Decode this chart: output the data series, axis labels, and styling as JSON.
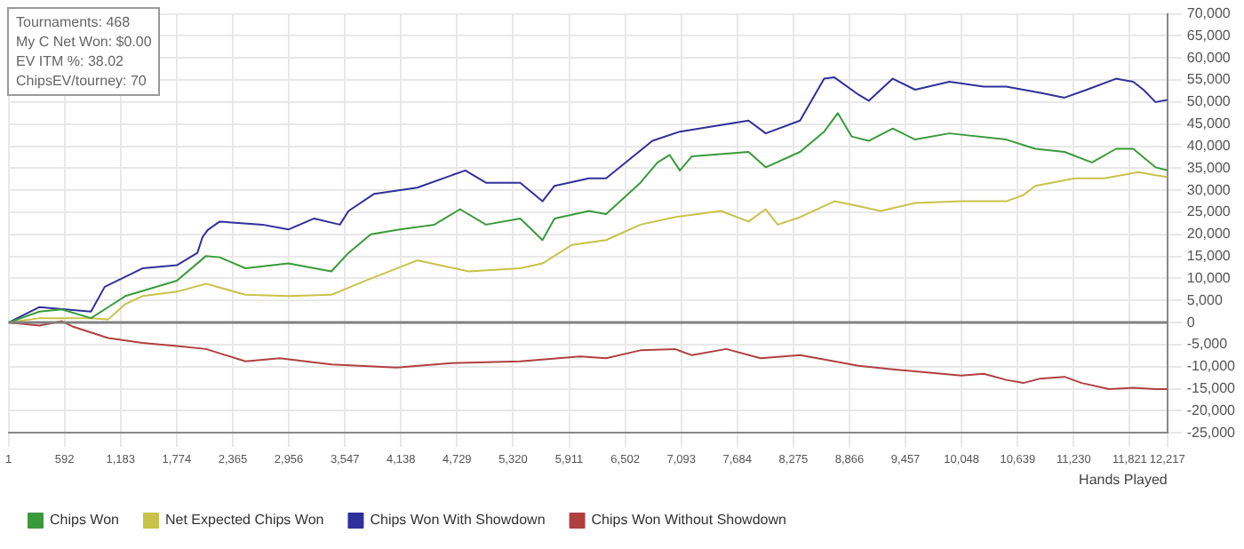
{
  "chart_data": {
    "type": "line",
    "xlabel": "Hands Played",
    "annotations": [
      "Tournaments: 468",
      "My C Net Won: $0.00",
      "EV ITM %: 38.02",
      "ChipsEV/tourney: 70"
    ],
    "xlim": [
      1,
      12217
    ],
    "xticks": [
      1,
      592,
      {
        "value": 1183,
        "label": "1,183"
      },
      {
        "value": 1774,
        "label": "1,774"
      },
      {
        "value": 2365,
        "label": "2,365"
      },
      {
        "value": 2956,
        "label": "2,956"
      },
      {
        "value": 3547,
        "label": "3,547"
      },
      {
        "value": 4138,
        "label": "4,138"
      },
      {
        "value": 4729,
        "label": "4,729"
      },
      {
        "value": 5320,
        "label": "5,320"
      },
      {
        "value": 5911,
        "label": "5,911"
      },
      {
        "value": 6502,
        "label": "6,502"
      },
      {
        "value": 7093,
        "label": "7,093"
      },
      {
        "value": 7684,
        "label": "7,684"
      },
      {
        "value": 8275,
        "label": "8,275"
      },
      {
        "value": 8866,
        "label": "8,866"
      },
      {
        "value": 9457,
        "label": "9,457"
      },
      {
        "value": 10048,
        "label": "10,048"
      },
      {
        "value": 10639,
        "label": "10,639"
      },
      {
        "value": 11230,
        "label": "11,230"
      },
      {
        "value": 11821,
        "label": "11,821"
      },
      {
        "value": 12217,
        "label": "12,217"
      }
    ],
    "ylim": [
      -25000,
      70000
    ],
    "yticks": [
      {
        "value": -25000,
        "label": "-25,000"
      },
      {
        "value": -20000,
        "label": "-20,000"
      },
      {
        "value": -15000,
        "label": "-15,000"
      },
      {
        "value": -10000,
        "label": "-10,000"
      },
      {
        "value": -5000,
        "label": "-5,000"
      },
      0,
      {
        "value": 5000,
        "label": "5,000"
      },
      {
        "value": 10000,
        "label": "10,000"
      },
      {
        "value": 15000,
        "label": "15,000"
      },
      {
        "value": 20000,
        "label": "20,000"
      },
      {
        "value": 25000,
        "label": "25,000"
      },
      {
        "value": 30000,
        "label": "30,000"
      },
      {
        "value": 35000,
        "label": "35,000"
      },
      {
        "value": 40000,
        "label": "40,000"
      },
      {
        "value": 45000,
        "label": "45,000"
      },
      {
        "value": 50000,
        "label": "50,000"
      },
      {
        "value": 55000,
        "label": "55,000"
      },
      {
        "value": 60000,
        "label": "60,000"
      },
      {
        "value": 65000,
        "label": "65,000"
      },
      {
        "value": 70000,
        "label": "70,000"
      }
    ],
    "grid": true,
    "legend": "bottom",
    "marker": "none",
    "line_style": "solid",
    "ref_lines": [
      {
        "axis": "y",
        "value": 0,
        "color": "#808080"
      }
    ],
    "series": [
      {
        "name": "Chips Won",
        "color": "#3a9a3a",
        "x": [
          1,
          327,
          562,
          870,
          1051,
          1232,
          1775,
          2083,
          2227,
          2499,
          2951,
          3404,
          3585,
          3820,
          4128,
          4490,
          4761,
          5033,
          5395,
          5630,
          5757,
          6119,
          6300,
          6662,
          6843,
          6970,
          7078,
          7205,
          7802,
          7983,
          8345,
          8599,
          8743,
          8888,
          9069,
          9322,
          9558,
          9920,
          10518,
          10825,
          11133,
          11422,
          11676,
          11857,
          12092,
          12217
        ],
        "values": [
          0,
          2500,
          3000,
          1000,
          3500,
          6000,
          9500,
          15100,
          14800,
          12300,
          13400,
          11600,
          15800,
          20000,
          21100,
          22200,
          25700,
          22200,
          23600,
          18700,
          23600,
          25300,
          24600,
          31700,
          36300,
          38000,
          34500,
          37700,
          38700,
          35200,
          38700,
          43300,
          47500,
          42200,
          41200,
          44000,
          41500,
          42900,
          41500,
          39400,
          38700,
          36300,
          39400,
          39400,
          35200,
          34500
        ]
      },
      {
        "name": "Net Expected Chips Won",
        "color": "#c8c24a",
        "x": [
          1,
          327,
          870,
          1051,
          1232,
          1413,
          1775,
          2083,
          2499,
          2951,
          3404,
          3766,
          4309,
          4852,
          5395,
          5630,
          5938,
          6300,
          6662,
          7024,
          7512,
          7802,
          7983,
          8110,
          8345,
          8707,
          8960,
          9195,
          9558,
          10046,
          10518,
          10699,
          10825,
          11241,
          11549,
          11911,
          12092,
          12217
        ],
        "values": [
          0,
          1000,
          1000,
          700,
          4200,
          6000,
          7000,
          8800,
          6300,
          6000,
          6300,
          9500,
          14100,
          11600,
          12300,
          13400,
          17600,
          18700,
          22200,
          23900,
          25300,
          22900,
          25700,
          22200,
          23900,
          27500,
          26400,
          25300,
          27100,
          27500,
          27500,
          28900,
          31000,
          32700,
          32700,
          34100,
          33400,
          33000
        ]
      },
      {
        "name": "Chips Won With Showdown",
        "color": "#30309a",
        "x": [
          1,
          327,
          870,
          1015,
          1413,
          1775,
          1992,
          2046,
          2101,
          2227,
          2680,
          2951,
          3223,
          3494,
          3585,
          3856,
          4309,
          4816,
          5033,
          5395,
          5630,
          5757,
          6119,
          6300,
          6789,
          7078,
          7802,
          7983,
          8345,
          8599,
          8707,
          8960,
          9069,
          9322,
          9558,
          9920,
          10282,
          10518,
          10879,
          11133,
          11368,
          11676,
          11857,
          11965,
          12092,
          12217
        ],
        "values": [
          0,
          3500,
          2500,
          8100,
          12300,
          13000,
          15800,
          19400,
          21000,
          22900,
          22200,
          21100,
          23600,
          22200,
          25300,
          29200,
          30600,
          34500,
          31700,
          31700,
          27500,
          31000,
          32700,
          32700,
          41200,
          43300,
          45800,
          42900,
          45800,
          55300,
          55600,
          51700,
          50300,
          55300,
          52800,
          54600,
          53500,
          53500,
          52100,
          51000,
          52800,
          55300,
          54600,
          52800,
          50000,
          50500
        ]
      },
      {
        "name": "Chips Won Without Showdown",
        "color": "#b04040",
        "x": [
          1,
          327,
          562,
          689,
          1051,
          1413,
          1775,
          2083,
          2499,
          2861,
          3404,
          4092,
          4671,
          5395,
          6028,
          6300,
          6662,
          7024,
          7205,
          7567,
          7929,
          8345,
          8707,
          8960,
          9322,
          9685,
          10046,
          10282,
          10518,
          10699,
          10879,
          11133,
          11313,
          11603,
          11857,
          12092,
          12217
        ],
        "values": [
          0,
          -700,
          300,
          -1000,
          -3500,
          -4600,
          -5300,
          -6000,
          -8800,
          -8100,
          -9500,
          -10200,
          -9200,
          -8800,
          -7700,
          -8100,
          -6300,
          -6000,
          -7400,
          -6000,
          -8100,
          -7400,
          -8800,
          -9800,
          -10600,
          -11300,
          -12000,
          -11600,
          -13000,
          -13700,
          -12700,
          -12300,
          -13700,
          -15100,
          -14800,
          -15100,
          -15100
        ]
      }
    ]
  }
}
